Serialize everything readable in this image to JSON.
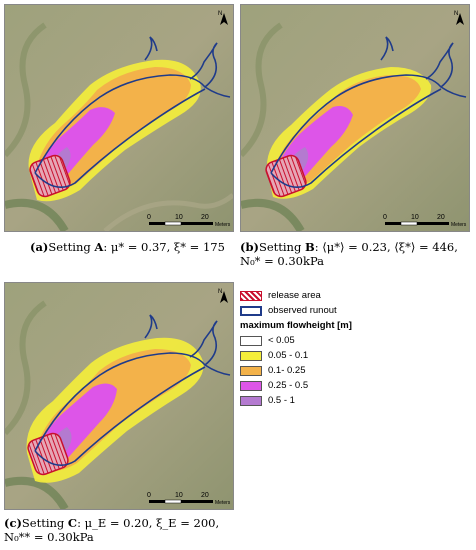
{
  "panels": [
    {
      "id": "A",
      "scale": {
        "ticks": [
          "0",
          "10",
          "20"
        ],
        "unit": "Meters"
      },
      "caption": {
        "label": "(a)",
        "setting": "Setting ",
        "letter": "A",
        "text": ": μ* = 0.37, ξ* = 175"
      }
    },
    {
      "id": "B",
      "scale": {
        "ticks": [
          "0",
          "10",
          "20"
        ],
        "unit": "Meters"
      },
      "caption": {
        "label": "(b)",
        "setting": "Setting ",
        "letter": "B",
        "text": ": ⟨μ*⟩ = 0.23, ⟨ξ*⟩ = 446, N₀* = 0.30kPa"
      }
    },
    {
      "id": "C",
      "scale": {
        "ticks": [
          "0",
          "10",
          "20"
        ],
        "unit": "Meters"
      },
      "caption": {
        "label": "(c)",
        "setting": "Setting ",
        "letter": "C",
        "text": ": μ_E = 0.20, ξ_E = 200, N₀** = 0.30kPa"
      }
    }
  ],
  "north_label": "N",
  "legend": {
    "release": "release area",
    "runout": "observed runout",
    "title": "maximum flowheight [m]",
    "classes": [
      {
        "label": "< 0.05",
        "color": "#ffffff"
      },
      {
        "label": "0.05 - 0.1",
        "color": "#f5ee3a"
      },
      {
        "label": "0.1- 0.25",
        "color": "#f3b24a"
      },
      {
        "label": "0.25 - 0.5",
        "color": "#dd55e8"
      },
      {
        "label": "0.5 - 1",
        "color": "#b47ad0"
      }
    ]
  },
  "colors": {
    "terrain": "#9a9a78",
    "runout": "#1f3b8a",
    "release": "#c8102e"
  }
}
